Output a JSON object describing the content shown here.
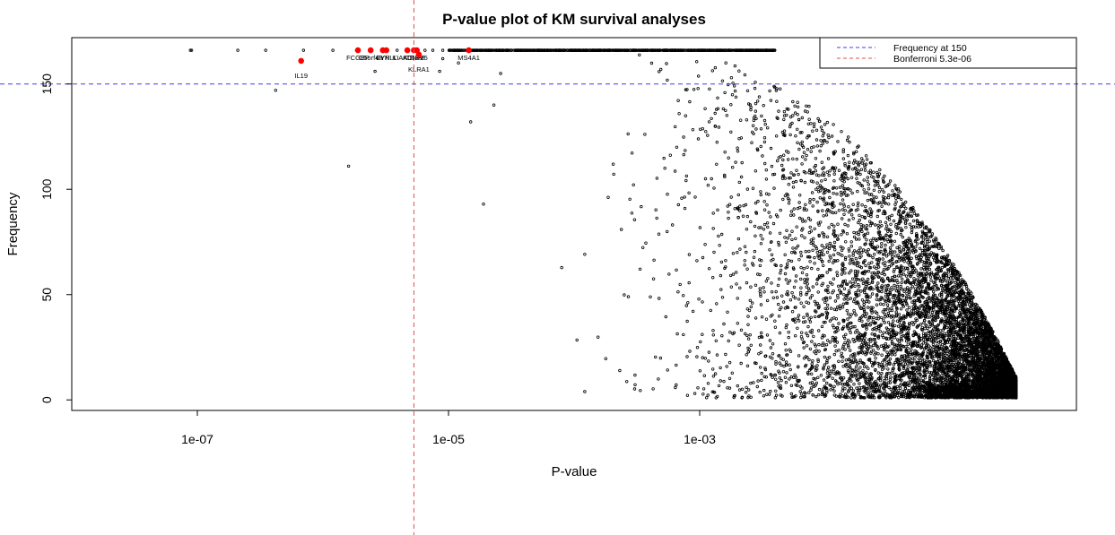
{
  "chart_data": {
    "type": "scatter",
    "title": "P-value plot of KM survival analyses",
    "xlabel": "P-value",
    "ylabel": "Frequency",
    "x_scale": "log",
    "xlim": [
      1e-08,
      1
    ],
    "ylim": [
      -5,
      172
    ],
    "x_ticks": [
      {
        "value": 1e-07,
        "label": "1e-07"
      },
      {
        "value": 1e-05,
        "label": "1e-05"
      },
      {
        "value": 0.001,
        "label": "1e-03"
      }
    ],
    "y_ticks": [
      {
        "value": 0,
        "label": "0"
      },
      {
        "value": 50,
        "label": "50"
      },
      {
        "value": 100,
        "label": "100"
      },
      {
        "value": 150,
        "label": "150"
      }
    ],
    "reference_lines": [
      {
        "orientation": "horizontal",
        "value": 150,
        "color": "#3b3bf5",
        "style": "dashed"
      },
      {
        "orientation": "vertical",
        "value": 5.3e-06,
        "color": "#d9534f",
        "style": "dashed"
      }
    ],
    "legend": {
      "position": "top-right",
      "entries": [
        {
          "label": "Frequency at 150",
          "color": "#3b3bf5",
          "style": "dashed"
        },
        {
          "label": "Bonferroni  5.3e-06",
          "color": "#d9534f",
          "style": "dashed"
        }
      ]
    },
    "highlight_color": "#ff0000",
    "highlighted": [
      {
        "gene": "IL19",
        "p": 6.7e-07,
        "freq": 161
      },
      {
        "gene": "FCGBP",
        "p": 1.9e-06,
        "freq": 166
      },
      {
        "gene": "C5orf48",
        "p": 2.4e-06,
        "freq": 166
      },
      {
        "gene": "FYN",
        "p": 3e-06,
        "freq": 166
      },
      {
        "gene": "CYPLL",
        "p": 3.2e-06,
        "freq": 166
      },
      {
        "gene": "KIAA0125",
        "p": 4.7e-06,
        "freq": 166
      },
      {
        "gene": "KCNF5",
        "p": 5.3e-06,
        "freq": 166
      },
      {
        "gene": "TRBV5",
        "p": 5.6e-06,
        "freq": 166
      },
      {
        "gene": "KLRA1",
        "p": 5.8e-06,
        "freq": 164
      },
      {
        "gene": "MS4A1",
        "p": 1.45e-05,
        "freq": 166
      }
    ],
    "background_points_description_generated": true
  }
}
